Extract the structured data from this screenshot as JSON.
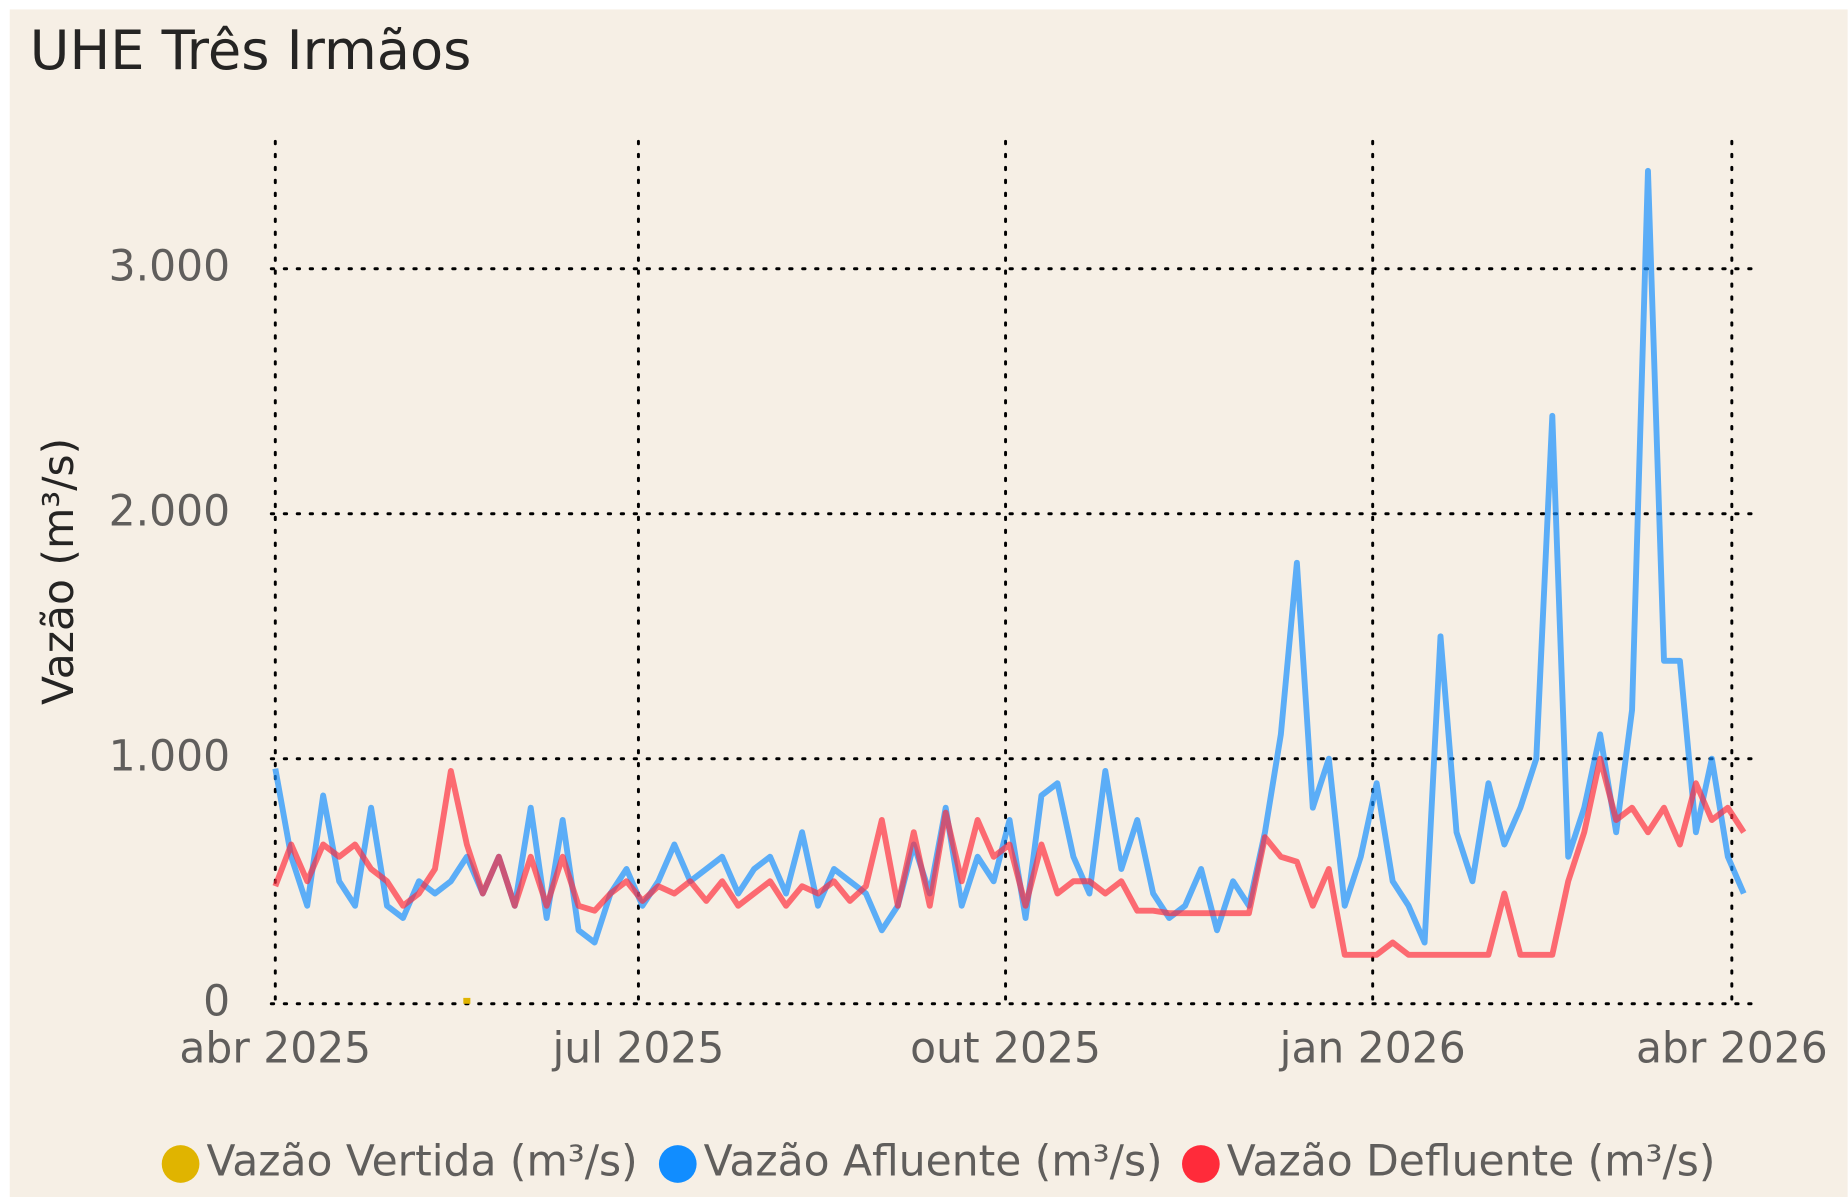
{
  "chart_data": {
    "type": "line",
    "title": "UHE Três Irmãos",
    "ylabel": "Vazão (m³/s)",
    "x": [
      0,
      4,
      8,
      12,
      16,
      20,
      24,
      28,
      32,
      36,
      40,
      44,
      48,
      52,
      56,
      60,
      64,
      68,
      72,
      76,
      80,
      84,
      88,
      92,
      96,
      100,
      104,
      108,
      112,
      116,
      120,
      124,
      128,
      132,
      136,
      140,
      144,
      148,
      152,
      156,
      160,
      164,
      168,
      172,
      176,
      180,
      184,
      188,
      192,
      196,
      200,
      204,
      208,
      212,
      216,
      220,
      224,
      228,
      232,
      236,
      240,
      244,
      248,
      252,
      256,
      260,
      264,
      268,
      272,
      276,
      280,
      284,
      288,
      292,
      296,
      300,
      304,
      308,
      312,
      316,
      320,
      324,
      328,
      332,
      336,
      340,
      344,
      348,
      352,
      356,
      360,
      364,
      368
    ],
    "xlim": [
      -1,
      371
    ],
    "xticks": [
      {
        "value": 0,
        "label": "abr 2025"
      },
      {
        "value": 91,
        "label": "jul 2025"
      },
      {
        "value": 183,
        "label": "out 2025"
      },
      {
        "value": 275,
        "label": "jan 2026"
      },
      {
        "value": 365,
        "label": "abr 2026"
      }
    ],
    "ylim": [
      0,
      3520
    ],
    "yticks": [
      0,
      {
        "value": 1000,
        "label": "1.000"
      },
      {
        "value": 2000,
        "label": "2.000"
      },
      {
        "value": 3000,
        "label": "3.000"
      }
    ],
    "grid": true,
    "series": [
      {
        "name": "Vazão Vertida (m³/s)",
        "color": "#E0B400",
        "values": [
          null,
          null,
          null,
          null,
          null,
          null,
          null,
          null,
          null,
          null,
          null,
          null,
          0,
          null,
          null,
          null,
          null,
          null,
          null,
          null,
          null,
          null,
          null,
          null,
          null,
          null,
          null,
          null,
          null,
          null,
          null,
          null,
          null,
          null,
          null,
          null,
          null,
          null,
          null,
          null,
          null,
          null,
          null,
          null,
          null,
          null,
          null,
          null,
          null,
          null,
          null,
          null,
          null,
          null,
          null,
          null,
          null,
          null,
          null,
          null,
          null,
          null,
          null,
          null,
          null,
          null,
          null,
          null,
          null,
          null,
          null,
          null,
          null,
          null,
          null,
          null,
          null,
          null,
          null,
          null,
          null,
          null,
          null,
          null,
          null,
          null,
          null,
          null,
          null,
          null,
          null,
          null,
          null
        ]
      },
      {
        "name": "Vazão Afluente (m³/s)",
        "color": "#118DFF",
        "values": [
          960,
          600,
          400,
          850,
          500,
          400,
          800,
          400,
          350,
          500,
          450,
          500,
          600,
          450,
          600,
          400,
          800,
          350,
          750,
          300,
          250,
          450,
          550,
          400,
          500,
          650,
          500,
          550,
          600,
          450,
          550,
          600,
          450,
          700,
          400,
          550,
          500,
          450,
          300,
          400,
          650,
          450,
          800,
          400,
          600,
          500,
          750,
          350,
          850,
          900,
          600,
          450,
          950,
          550,
          750,
          450,
          350,
          400,
          550,
          300,
          500,
          400,
          700,
          1100,
          1800,
          800,
          1000,
          400,
          600,
          900,
          500,
          400,
          250,
          1500,
          700,
          500,
          900,
          650,
          800,
          1000,
          2400,
          600,
          800,
          1100,
          700,
          1200,
          3400,
          1400,
          1400,
          700,
          1000,
          600,
          450
        ]
      },
      {
        "name": "Vazão Defluente (m³/s)",
        "color": "#FF2B3A",
        "values": [
          480,
          650,
          500,
          650,
          600,
          650,
          550,
          500,
          400,
          450,
          550,
          950,
          650,
          450,
          600,
          400,
          600,
          400,
          600,
          400,
          380,
          450,
          500,
          420,
          480,
          450,
          500,
          420,
          500,
          400,
          450,
          500,
          400,
          480,
          450,
          500,
          420,
          480,
          750,
          400,
          700,
          400,
          780,
          500,
          750,
          600,
          650,
          400,
          650,
          450,
          500,
          500,
          450,
          500,
          380,
          380,
          370,
          370,
          370,
          370,
          370,
          370,
          680,
          600,
          580,
          400,
          550,
          200,
          200,
          200,
          250,
          200,
          200,
          200,
          200,
          200,
          200,
          450,
          200,
          200,
          200,
          500,
          700,
          1000,
          750,
          800,
          700,
          800,
          650,
          900,
          750,
          800,
          700
        ]
      }
    ]
  }
}
